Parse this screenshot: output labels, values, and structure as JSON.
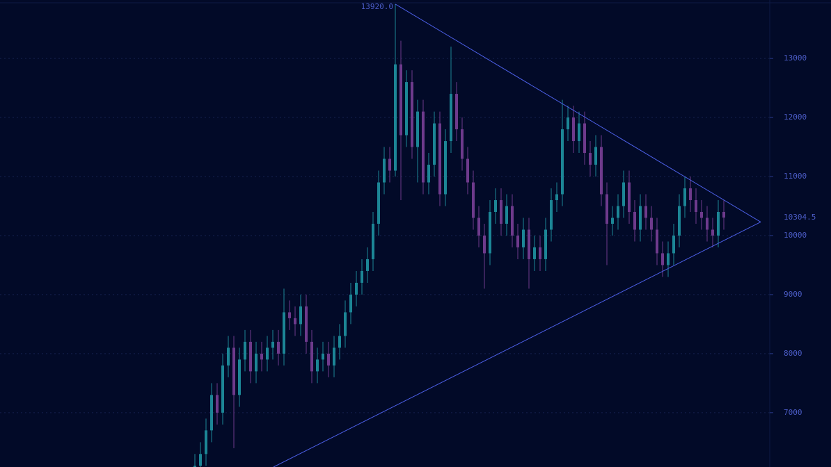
{
  "chart_data": {
    "type": "candlestick",
    "ylim": [
      6080,
      13990
    ],
    "yticks": [
      7000,
      8000,
      9000,
      10000,
      11000,
      12000,
      13000
    ],
    "grid": true,
    "up_color": "#1c8696",
    "down_color": "#6e3a8c",
    "trendline_color": "#4c5fe6",
    "open": [
      6000,
      6100,
      6300,
      6700,
      7300,
      7000,
      7800,
      8100,
      7300,
      7900,
      8200,
      7700,
      8000,
      7900,
      8100,
      8200,
      8000,
      8700,
      8600,
      8500,
      8800,
      8200,
      7700,
      7900,
      8000,
      7800,
      8100,
      8300,
      8700,
      9000,
      9200,
      9400,
      9600,
      10200,
      10900,
      11300,
      11100,
      12900,
      11700,
      12600,
      11500,
      12100,
      10900,
      11200,
      11900,
      10700,
      11600,
      12400,
      11800,
      11300,
      10900,
      10300,
      10000,
      9700,
      10400,
      10600,
      10200,
      10500,
      10000,
      9800,
      10100,
      9600,
      9800,
      9600,
      10100,
      10600,
      10700,
      11800,
      12000,
      11600,
      11900,
      11400,
      11200,
      11500,
      10700,
      10200,
      10300,
      10500,
      10900,
      10400,
      10100,
      10500,
      10300,
      10100,
      9700,
      9500,
      9700,
      10000,
      10500,
      10800,
      10600,
      10400,
      10300,
      10100,
      10000,
      10400
    ],
    "high": [
      6300,
      6500,
      6900,
      7500,
      7500,
      8000,
      8300,
      8300,
      8100,
      8400,
      8400,
      8200,
      8200,
      8300,
      8400,
      8400,
      9100,
      8900,
      8800,
      9000,
      9000,
      8400,
      8100,
      8200,
      8200,
      8300,
      8500,
      8900,
      9200,
      9400,
      9600,
      9800,
      10400,
      11100,
      11500,
      11500,
      13920,
      13300,
      12800,
      12800,
      12300,
      12300,
      11400,
      12100,
      12100,
      11800,
      13200,
      12600,
      12000,
      11500,
      11100,
      10500,
      10200,
      10600,
      10800,
      10800,
      10700,
      10700,
      10200,
      10300,
      10300,
      10000,
      10000,
      10300,
      10800,
      10900,
      12300,
      12200,
      12200,
      12100,
      12100,
      11600,
      11700,
      11700,
      10900,
      10500,
      10700,
      11100,
      11100,
      10600,
      10700,
      10700,
      10500,
      10300,
      9900,
      9900,
      10200,
      10700,
      11000,
      11000,
      10800,
      10600,
      10500,
      10300,
      10600,
      10600
    ],
    "low": [
      5800,
      5900,
      6100,
      6500,
      6800,
      6800,
      7600,
      6400,
      7100,
      7700,
      7500,
      7500,
      7700,
      7700,
      7900,
      7800,
      7800,
      8400,
      8300,
      8300,
      8000,
      7500,
      7500,
      7700,
      7600,
      7600,
      7900,
      8100,
      8500,
      8800,
      9000,
      9200,
      9400,
      10000,
      10700,
      10900,
      11000,
      10600,
      11500,
      11300,
      10900,
      10700,
      10700,
      11000,
      10500,
      10500,
      11400,
      11600,
      11100,
      10700,
      10100,
      9800,
      9100,
      9500,
      10200,
      10000,
      10000,
      9800,
      9600,
      9600,
      9100,
      9400,
      9400,
      9400,
      9900,
      10400,
      10500,
      11600,
      11400,
      11400,
      11200,
      11000,
      11000,
      10500,
      9500,
      10000,
      10100,
      10300,
      10200,
      9900,
      9900,
      10100,
      9900,
      9500,
      9300,
      9300,
      9500,
      9800,
      10300,
      10400,
      10200,
      10100,
      9900,
      9800,
      9800,
      10100
    ],
    "close": [
      6100,
      6300,
      6700,
      7300,
      7000,
      7800,
      8100,
      7300,
      7900,
      8200,
      7700,
      8000,
      7900,
      8100,
      8200,
      8000,
      8700,
      8600,
      8500,
      8800,
      8200,
      7700,
      7900,
      8000,
      7800,
      8100,
      8300,
      8700,
      9000,
      9200,
      9400,
      9600,
      10200,
      10900,
      11300,
      11100,
      12900,
      11700,
      12600,
      11500,
      12100,
      10900,
      11200,
      11900,
      10700,
      11600,
      12400,
      11800,
      11300,
      10900,
      10300,
      10000,
      9700,
      10400,
      10600,
      10200,
      10500,
      10000,
      9800,
      10100,
      9600,
      9800,
      9600,
      10100,
      10600,
      10700,
      11800,
      12000,
      11600,
      11900,
      11400,
      11200,
      11500,
      10700,
      10200,
      10300,
      10500,
      10900,
      10400,
      10100,
      10500,
      10300,
      10100,
      9700,
      9500,
      9700,
      10000,
      10500,
      10800,
      10600,
      10400,
      10300,
      10100,
      10000,
      10400,
      10304.5
    ],
    "annotation": {
      "value": 13920,
      "label": "13920.0"
    },
    "trendlines": [
      {
        "start": 13920,
        "end": 10230
      },
      {
        "start": 6080,
        "end": 10230
      }
    ]
  }
}
